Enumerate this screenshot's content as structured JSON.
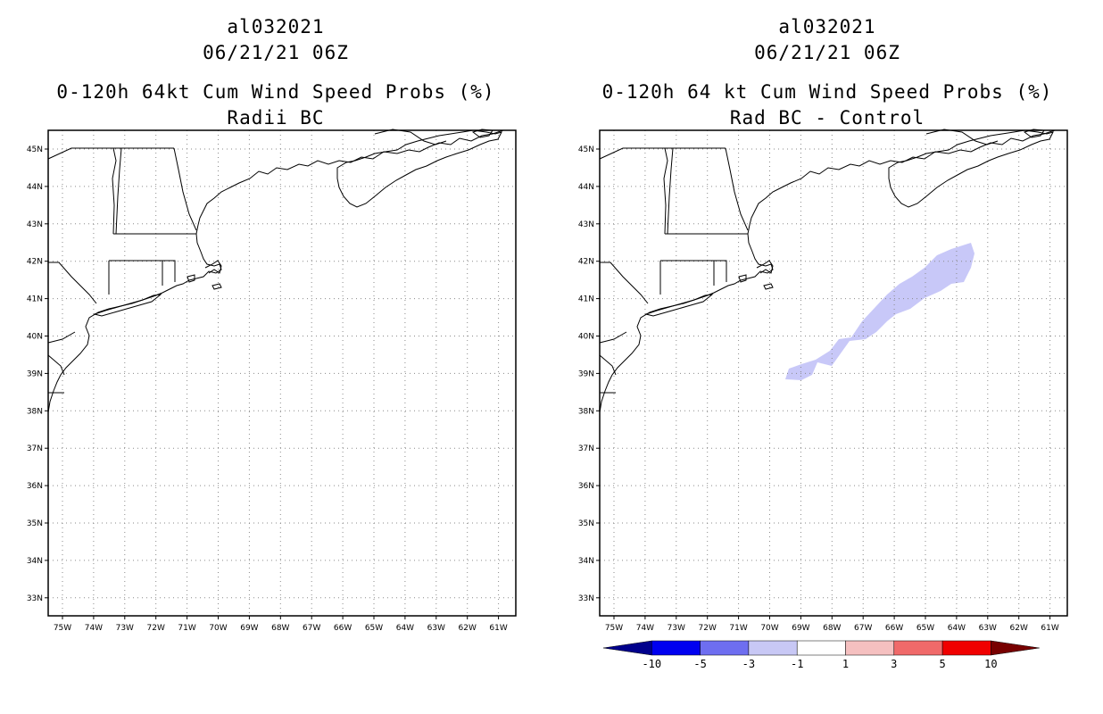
{
  "panels": [
    {
      "storm_id": "al032021",
      "datetime": "06/21/21 06Z",
      "title": "0-120h 64kt Cum Wind Speed Probs (%)",
      "subtitle": "Radii BC"
    },
    {
      "storm_id": "al032021",
      "datetime": "06/21/21 06Z",
      "title": "0-120h 64 kt Cum Wind Speed Probs (%)",
      "subtitle": "Rad BC - Control"
    }
  ],
  "lat_labels": [
    "45N",
    "44N",
    "43N",
    "42N",
    "41N",
    "40N",
    "39N",
    "38N",
    "37N",
    "36N",
    "35N",
    "34N",
    "33N"
  ],
  "lon_labels": [
    "75W",
    "74W",
    "73W",
    "72W",
    "71W",
    "70W",
    "69W",
    "68W",
    "67W",
    "66W",
    "65W",
    "64W",
    "63W",
    "62W",
    "61W"
  ],
  "colorbar": {
    "labels": [
      "-10",
      "-5",
      "-3",
      "-1",
      "1",
      "3",
      "5",
      "10"
    ],
    "colors": [
      "#00008c",
      "#0000f0",
      "#6e6ef0",
      "#c8c8f5",
      "#ffffff",
      "#f5c0c0",
      "#f06a6a",
      "#f00000",
      "#780000"
    ]
  },
  "difference_field": {
    "description_value": "-3 to -1",
    "color": "#c8c8f8"
  }
}
